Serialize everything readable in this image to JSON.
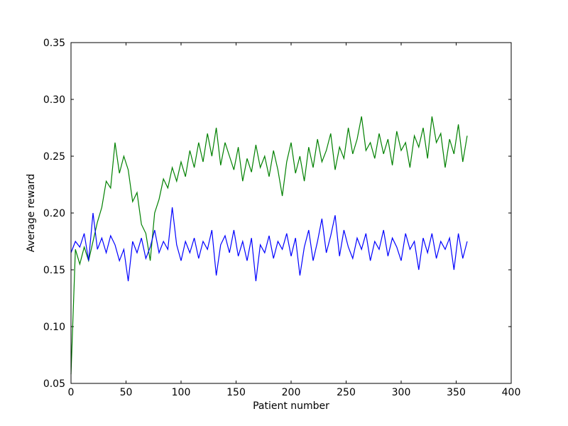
{
  "chart_data": {
    "type": "line",
    "x_label": "Patient number",
    "y_label": "Average reward",
    "x": [
      0,
      4,
      8,
      12,
      16,
      20,
      24,
      28,
      32,
      36,
      40,
      44,
      48,
      52,
      56,
      60,
      64,
      68,
      72,
      76,
      80,
      84,
      88,
      92,
      96,
      100,
      104,
      108,
      112,
      116,
      120,
      124,
      128,
      132,
      136,
      140,
      144,
      148,
      152,
      156,
      160,
      164,
      168,
      172,
      176,
      180,
      184,
      188,
      192,
      196,
      200,
      204,
      208,
      212,
      216,
      220,
      224,
      228,
      232,
      236,
      240,
      244,
      248,
      252,
      256,
      260,
      264,
      268,
      272,
      276,
      280,
      284,
      288,
      292,
      296,
      300,
      304,
      308,
      312,
      316,
      320,
      324,
      328,
      332,
      336,
      340,
      344,
      348,
      352,
      356,
      360
    ],
    "series": [
      {
        "color": "#008000",
        "values": [
          0.058,
          0.168,
          0.155,
          0.17,
          0.158,
          0.175,
          0.192,
          0.205,
          0.228,
          0.222,
          0.262,
          0.235,
          0.25,
          0.238,
          0.21,
          0.218,
          0.19,
          0.182,
          0.158,
          0.2,
          0.212,
          0.23,
          0.222,
          0.24,
          0.228,
          0.245,
          0.232,
          0.255,
          0.24,
          0.262,
          0.245,
          0.27,
          0.25,
          0.275,
          0.242,
          0.262,
          0.25,
          0.238,
          0.258,
          0.228,
          0.248,
          0.236,
          0.26,
          0.24,
          0.25,
          0.232,
          0.255,
          0.238,
          0.215,
          0.245,
          0.262,
          0.235,
          0.25,
          0.228,
          0.258,
          0.24,
          0.265,
          0.245,
          0.255,
          0.27,
          0.238,
          0.258,
          0.248,
          0.275,
          0.252,
          0.265,
          0.285,
          0.255,
          0.262,
          0.248,
          0.27,
          0.252,
          0.265,
          0.242,
          0.272,
          0.255,
          0.262,
          0.24,
          0.268,
          0.258,
          0.275,
          0.248,
          0.285,
          0.262,
          0.27,
          0.24,
          0.265,
          0.252,
          0.278,
          0.245,
          0.268
        ]
      },
      {
        "color": "#0000ff",
        "values": [
          0.165,
          0.175,
          0.17,
          0.182,
          0.158,
          0.2,
          0.168,
          0.178,
          0.165,
          0.18,
          0.172,
          0.158,
          0.168,
          0.14,
          0.175,
          0.165,
          0.178,
          0.16,
          0.17,
          0.185,
          0.165,
          0.175,
          0.168,
          0.205,
          0.172,
          0.158,
          0.175,
          0.165,
          0.178,
          0.16,
          0.175,
          0.168,
          0.185,
          0.145,
          0.172,
          0.18,
          0.165,
          0.185,
          0.162,
          0.175,
          0.158,
          0.178,
          0.14,
          0.172,
          0.165,
          0.18,
          0.16,
          0.175,
          0.168,
          0.182,
          0.162,
          0.178,
          0.145,
          0.17,
          0.185,
          0.158,
          0.175,
          0.195,
          0.165,
          0.18,
          0.198,
          0.162,
          0.185,
          0.17,
          0.16,
          0.178,
          0.168,
          0.182,
          0.158,
          0.175,
          0.168,
          0.185,
          0.162,
          0.178,
          0.17,
          0.158,
          0.182,
          0.168,
          0.175,
          0.15,
          0.178,
          0.165,
          0.182,
          0.16,
          0.175,
          0.168,
          0.178,
          0.15,
          0.182,
          0.16,
          0.175
        ]
      }
    ],
    "xlim": [
      0,
      400
    ],
    "xticks": [
      0,
      50,
      100,
      150,
      200,
      250,
      300,
      350,
      400
    ],
    "ylim": [
      0.05,
      0.35
    ],
    "yticks": [
      0.05,
      {
        "value": 0.1,
        "label": "0.10"
      },
      0.15,
      {
        "value": 0.2,
        "label": "0.20"
      },
      0.25,
      {
        "value": 0.3,
        "label": "0.30"
      },
      0.35
    ],
    "grid": false
  }
}
